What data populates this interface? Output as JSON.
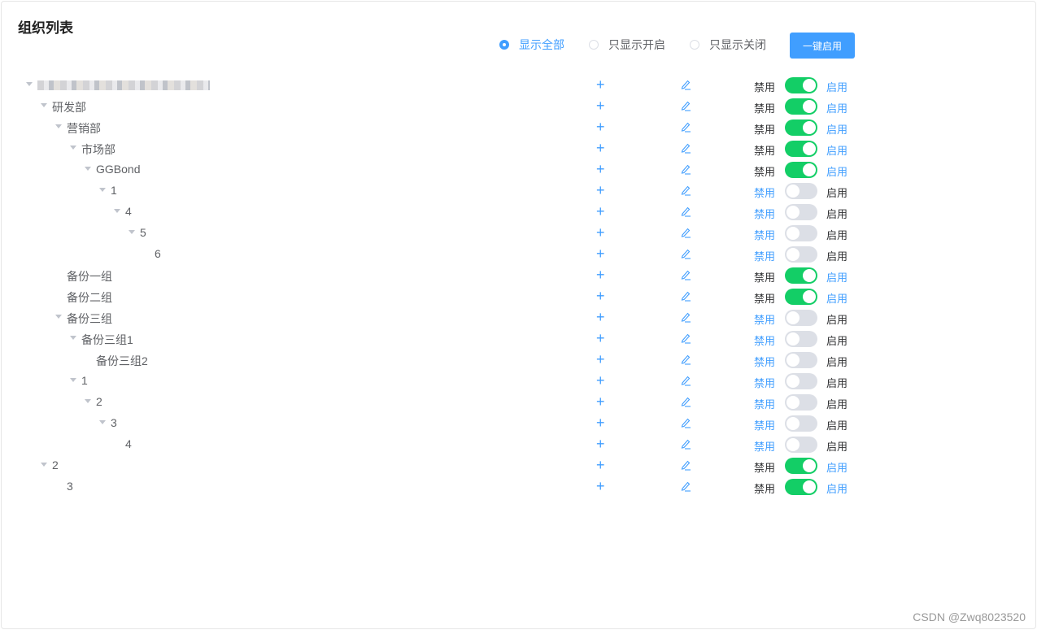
{
  "title": "组织列表",
  "filters": [
    {
      "label": "显示全部",
      "selected": true
    },
    {
      "label": "只显示开启",
      "selected": false
    },
    {
      "label": "只显示关闭",
      "selected": false
    }
  ],
  "enable_all": "一键启用",
  "disable_label": "禁用",
  "enable_label": "启用",
  "colors": {
    "primary": "#409eff",
    "switch_on": "#13ce66",
    "switch_off": "#dcdfe6"
  },
  "rows": [
    {
      "level": 0,
      "arrow": true,
      "label": "",
      "blurred": true,
      "on": true
    },
    {
      "level": 1,
      "arrow": true,
      "label": "研发部",
      "on": true
    },
    {
      "level": 2,
      "arrow": true,
      "label": "营销部",
      "on": true
    },
    {
      "level": 3,
      "arrow": true,
      "label": "市场部",
      "on": true
    },
    {
      "level": 4,
      "arrow": true,
      "label": "GGBond",
      "on": true
    },
    {
      "level": 5,
      "arrow": true,
      "label": "1",
      "on": false
    },
    {
      "level": 6,
      "arrow": true,
      "label": "4",
      "on": false
    },
    {
      "level": 7,
      "arrow": true,
      "label": "5",
      "on": false
    },
    {
      "level": 8,
      "arrow": false,
      "label": "6",
      "on": false
    },
    {
      "level": 2,
      "arrow": false,
      "label": "备份一组",
      "on": true
    },
    {
      "level": 2,
      "arrow": false,
      "label": "备份二组",
      "on": true
    },
    {
      "level": 2,
      "arrow": true,
      "label": "备份三组",
      "on": false
    },
    {
      "level": 3,
      "arrow": true,
      "label": "备份三组1",
      "on": false
    },
    {
      "level": 4,
      "arrow": false,
      "label": "备份三组2",
      "on": false
    },
    {
      "level": 3,
      "arrow": true,
      "label": "1",
      "on": false
    },
    {
      "level": 4,
      "arrow": true,
      "label": "2",
      "on": false
    },
    {
      "level": 5,
      "arrow": true,
      "label": "3",
      "on": false
    },
    {
      "level": 6,
      "arrow": false,
      "label": "4",
      "on": false
    },
    {
      "level": 1,
      "arrow": true,
      "label": "2",
      "on": true
    },
    {
      "level": 2,
      "arrow": false,
      "label": "3",
      "on": true
    }
  ],
  "watermark": "CSDN @Zwq8023520"
}
